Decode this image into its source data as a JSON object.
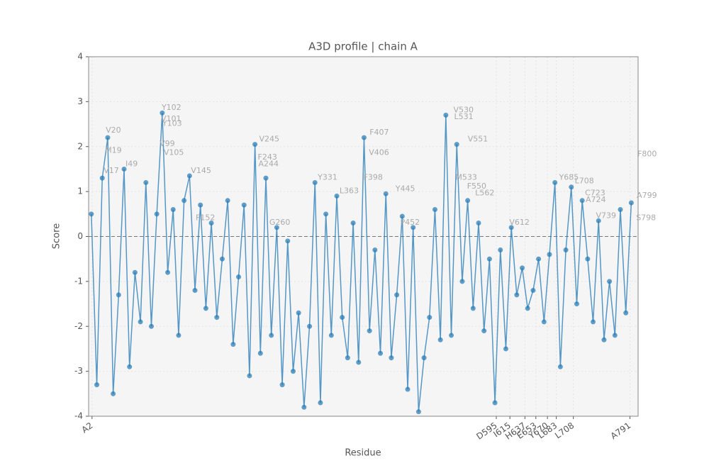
{
  "chart_data": {
    "type": "line",
    "title": "A3D profile | chain A",
    "xlabel": "Residue",
    "ylabel": "Score",
    "color": "#1f77b4",
    "grid": true,
    "hline": 0,
    "x": [
      1,
      9,
      17,
      25,
      33,
      41,
      49,
      57,
      65,
      73,
      81,
      89,
      97,
      105,
      113,
      121,
      129,
      137,
      145,
      153,
      161,
      169,
      177,
      185,
      193,
      201,
      209,
      217,
      225,
      233,
      241,
      249,
      257,
      265,
      273,
      281,
      289,
      297,
      305,
      313,
      321,
      329,
      337,
      345,
      353,
      361,
      369,
      377,
      385,
      393,
      401,
      409,
      417,
      425,
      433,
      441,
      449,
      457,
      465,
      473,
      481,
      489,
      497,
      505,
      513,
      521,
      529,
      537,
      545,
      553,
      561,
      569,
      577,
      585,
      593,
      601,
      609,
      617,
      625,
      633,
      641,
      649,
      657,
      665,
      673,
      681,
      689,
      697,
      705,
      713,
      721,
      729,
      737,
      745,
      753,
      761,
      769,
      777,
      785,
      793
    ],
    "values": [
      0.5,
      -3.3,
      1.3,
      2.2,
      -3.5,
      -1.3,
      1.5,
      -2.9,
      -0.8,
      -1.9,
      1.2,
      -2.0,
      0.5,
      2.75,
      -0.8,
      0.6,
      -2.2,
      0.8,
      1.35,
      -1.2,
      0.7,
      -1.6,
      0.3,
      -1.8,
      -0.5,
      0.8,
      -2.4,
      -0.9,
      0.7,
      -3.1,
      2.05,
      -2.6,
      1.3,
      -2.2,
      0.2,
      -3.3,
      -0.1,
      -3.0,
      -1.7,
      -3.8,
      -2.0,
      1.2,
      -3.7,
      0.5,
      -2.2,
      0.9,
      -1.8,
      -2.7,
      0.3,
      -2.8,
      2.2,
      -2.1,
      -0.3,
      -2.6,
      0.95,
      -2.7,
      -1.3,
      0.45,
      -3.4,
      0.2,
      -3.9,
      -2.7,
      -1.8,
      0.6,
      -2.3,
      2.7,
      -2.2,
      2.05,
      -1.0,
      0.8,
      -1.6,
      0.3,
      -2.1,
      -0.5,
      -3.7,
      -0.3,
      -2.5,
      0.2,
      -1.3,
      -0.7,
      -1.6,
      -1.2,
      -0.5,
      -1.9,
      -0.4,
      1.2,
      -2.9,
      -0.3,
      1.1,
      -1.5,
      0.8,
      -0.5,
      -1.9,
      0.35,
      -2.3,
      -1.0,
      -2.2,
      0.6,
      -1.7,
      0.75
    ],
    "xlim": [
      -3,
      803
    ],
    "ylim": [
      -4,
      4
    ],
    "yticks": [
      -4,
      -3,
      -2,
      -1,
      0,
      1,
      2,
      3,
      4
    ],
    "xticks": [
      {
        "value": 2,
        "label": "A2"
      },
      {
        "value": 595,
        "label": "D595"
      },
      {
        "value": 615,
        "label": "I615"
      },
      {
        "value": 637,
        "label": "H637"
      },
      {
        "value": 653,
        "label": "E653"
      },
      {
        "value": 670,
        "label": "Y670"
      },
      {
        "value": 683,
        "label": "L683"
      },
      {
        "value": 708,
        "label": "L708"
      },
      {
        "value": 791,
        "label": "A791"
      }
    ],
    "annotations": [
      {
        "text": "Y102",
        "x": 102,
        "y": 2.75
      },
      {
        "text": "V101",
        "x": 101,
        "y": 2.5
      },
      {
        "text": "Y103",
        "x": 103,
        "y": 2.4
      },
      {
        "text": "V20",
        "x": 20,
        "y": 2.25
      },
      {
        "text": "M19",
        "x": 19,
        "y": 1.8
      },
      {
        "text": "V99",
        "x": 99,
        "y": 1.95
      },
      {
        "text": "V105",
        "x": 105,
        "y": 1.75
      },
      {
        "text": "I49",
        "x": 49,
        "y": 1.5
      },
      {
        "text": "V17",
        "x": 17,
        "y": 1.35
      },
      {
        "text": "V145",
        "x": 145,
        "y": 1.35
      },
      {
        "text": "V245",
        "x": 245,
        "y": 2.05
      },
      {
        "text": "F243",
        "x": 243,
        "y": 1.65
      },
      {
        "text": "A244",
        "x": 244,
        "y": 1.5
      },
      {
        "text": "F407",
        "x": 407,
        "y": 2.2
      },
      {
        "text": "V406",
        "x": 406,
        "y": 1.75
      },
      {
        "text": "V530",
        "x": 530,
        "y": 2.7
      },
      {
        "text": "L531",
        "x": 531,
        "y": 2.55
      },
      {
        "text": "V551",
        "x": 551,
        "y": 2.05
      },
      {
        "text": "F800",
        "x": 800,
        "y": 1.72
      },
      {
        "text": "Y685",
        "x": 685,
        "y": 1.2
      },
      {
        "text": "L708",
        "x": 708,
        "y": 1.12
      },
      {
        "text": "C723",
        "x": 723,
        "y": 0.85
      },
      {
        "text": "A724",
        "x": 724,
        "y": 0.7
      },
      {
        "text": "Y331",
        "x": 331,
        "y": 1.2
      },
      {
        "text": "F398",
        "x": 398,
        "y": 1.2
      },
      {
        "text": "Y445",
        "x": 445,
        "y": 0.95
      },
      {
        "text": "M533",
        "x": 533,
        "y": 1.2
      },
      {
        "text": "F550",
        "x": 550,
        "y": 1.0
      },
      {
        "text": "L562",
        "x": 562,
        "y": 0.85
      },
      {
        "text": "V612",
        "x": 612,
        "y": 0.2
      },
      {
        "text": "G260",
        "x": 260,
        "y": 0.2
      },
      {
        "text": "L363",
        "x": 363,
        "y": 0.9
      },
      {
        "text": "A799",
        "x": 799,
        "y": 0.8
      },
      {
        "text": "S798",
        "x": 798,
        "y": 0.3
      },
      {
        "text": "V739",
        "x": 739,
        "y": 0.35
      },
      {
        "text": "F152",
        "x": 152,
        "y": 0.3
      },
      {
        "text": "P452",
        "x": 452,
        "y": 0.2
      }
    ]
  }
}
